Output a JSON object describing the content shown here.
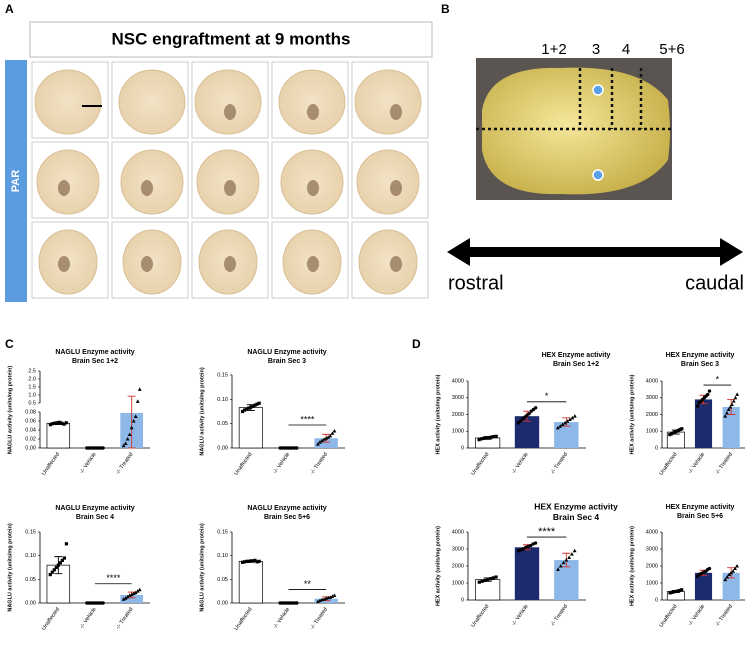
{
  "panels": {
    "A": {
      "label": "A",
      "title": "NSC engraftment at 9 months",
      "side_label": "PAR"
    },
    "B": {
      "label": "B",
      "sections": [
        "1+2",
        "3",
        "4",
        "5+6"
      ],
      "left": "rostral",
      "right": "caudal"
    },
    "C": {
      "label": "C"
    },
    "D": {
      "label": "D"
    }
  },
  "chart_data": [
    {
      "type": "bar",
      "title": [
        "NAGLU Enzyme activity",
        "Brain Sec 1+2"
      ],
      "ylabel": "NAGLU activity (units/mg protein)",
      "categories": [
        "Unaffected",
        "-/- Vehicle",
        "-/- Treated"
      ],
      "colors": [
        "#ffffff",
        "#1c2a6e",
        "#8db8e8"
      ],
      "values": [
        0.055,
        0,
        0.078
      ],
      "errors": [
        0.003,
        0,
        0.85
      ],
      "points": [
        [
          0.052,
          0.054,
          0.055,
          0.056,
          0.057,
          0.055,
          0.053,
          0.056
        ],
        [
          0,
          0,
          0,
          0,
          0,
          0,
          0,
          0,
          0
        ],
        [
          0.005,
          0.01,
          0.02,
          0.03,
          0.045,
          0.06,
          0.07,
          0.6,
          1.35
        ]
      ],
      "ylim": [
        0,
        0.08
      ],
      "yticks": [
        {
          "value": 0,
          "label": "0.00"
        },
        {
          "value": 0.02,
          "label": "0.02"
        },
        {
          "value": 0.04,
          "label": "0.04"
        },
        {
          "value": 0.06,
          "label": "0.06"
        },
        {
          "value": 0.08,
          "label": "0.08"
        }
      ],
      "upper_ylim": [
        0.5,
        2.5
      ],
      "upper_yticks": [
        0.5,
        {
          "value": 1,
          "label": "1.0"
        },
        1.5,
        {
          "value": 2,
          "label": "2.0"
        },
        2.5
      ]
    },
    {
      "type": "bar",
      "title": [
        "NAGLU Enzyme activity",
        "Brain Sec 3"
      ],
      "ylabel": "NAGLU activity (units/mg protein)",
      "categories": [
        "Unaffected",
        "-/- Vehicle",
        "-/- Treated"
      ],
      "colors": [
        "#ffffff",
        "#1c2a6e",
        "#8db8e8"
      ],
      "values": [
        0.083,
        0,
        0.02
      ],
      "errors": [
        0.006,
        0,
        0.008
      ],
      "points": [
        [
          0.075,
          0.078,
          0.08,
          0.082,
          0.084,
          0.086,
          0.088,
          0.09,
          0.092
        ],
        [
          0,
          0,
          0,
          0,
          0,
          0,
          0,
          0,
          0
        ],
        [
          0.008,
          0.012,
          0.015,
          0.018,
          0.02,
          0.022,
          0.025,
          0.03,
          0.035
        ]
      ],
      "ylim": [
        0,
        0.15
      ],
      "yticks": [
        {
          "value": 0,
          "label": "0.00"
        },
        {
          "value": 0.05,
          "label": "0.05"
        },
        {
          "value": 0.1,
          "label": "0.10"
        },
        {
          "value": 0.15,
          "label": "0.15"
        }
      ],
      "significance": "****"
    },
    {
      "type": "bar",
      "title": [
        "NAGLU Enzyme activity",
        "Brain Sec 4"
      ],
      "ylabel": "NAGLU activity (units/mg protein)",
      "categories": [
        "Unaffected",
        "-/- Vehicle",
        "-/- Treated"
      ],
      "colors": [
        "#ffffff",
        "#1c2a6e",
        "#8db8e8"
      ],
      "values": [
        0.08,
        0,
        0.017
      ],
      "errors": [
        0.018,
        0,
        0.006
      ],
      "points": [
        [
          0.06,
          0.065,
          0.07,
          0.075,
          0.08,
          0.085,
          0.09,
          0.095,
          0.125
        ],
        [
          0,
          0,
          0,
          0,
          0,
          0,
          0,
          0,
          0
        ],
        [
          0.008,
          0.01,
          0.013,
          0.016,
          0.018,
          0.02,
          0.022,
          0.025,
          0.028
        ]
      ],
      "ylim": [
        0,
        0.15
      ],
      "yticks": [
        {
          "value": 0,
          "label": "0.00"
        },
        {
          "value": 0.05,
          "label": "0.05"
        },
        {
          "value": 0.1,
          "label": "0.10"
        },
        {
          "value": 0.15,
          "label": "0.15"
        }
      ],
      "significance": "****"
    },
    {
      "type": "bar",
      "title": [
        "NAGLU Enzyme activity",
        "Brain Sec 5+6"
      ],
      "ylabel": "NAGLU activity (units/mg protein)",
      "categories": [
        "Unaffected",
        "-/- Vehicle",
        "-/- Treated"
      ],
      "colors": [
        "#ffffff",
        "#1c2a6e",
        "#8db8e8"
      ],
      "values": [
        0.088,
        0,
        0.009
      ],
      "errors": [
        0.002,
        0,
        0.004
      ],
      "points": [
        [
          0.086,
          0.087,
          0.088,
          0.088,
          0.089,
          0.089,
          0.09,
          0.087,
          0.088
        ],
        [
          0,
          0,
          0,
          0,
          0,
          0,
          0,
          0,
          0
        ],
        [
          0.003,
          0.005,
          0.007,
          0.008,
          0.01,
          0.011,
          0.012,
          0.014,
          0.016
        ]
      ],
      "ylim": [
        0,
        0.15
      ],
      "yticks": [
        {
          "value": 0,
          "label": "0.00"
        },
        {
          "value": 0.05,
          "label": "0.05"
        },
        {
          "value": 0.1,
          "label": "0.10"
        },
        {
          "value": 0.15,
          "label": "0.15"
        }
      ],
      "significance": "**"
    },
    {
      "type": "bar",
      "title": [
        "HEX Enzyme activity",
        "Brain Sec 1+2"
      ],
      "ylabel": "HEX activity (units/mg protein)",
      "categories": [
        "Unaffected",
        "-/- Vehicle",
        "-/- Treated"
      ],
      "colors": [
        "#ffffff",
        "#1c2a6e",
        "#8db8e8"
      ],
      "values": [
        600,
        1900,
        1550
      ],
      "errors": [
        80,
        300,
        250
      ],
      "points": [
        [
          500,
          550,
          580,
          600,
          620,
          650,
          680,
          700
        ],
        [
          1500,
          1600,
          1750,
          1850,
          1950,
          2050,
          2200,
          2300,
          2400
        ],
        [
          1200,
          1300,
          1400,
          1500,
          1600,
          1700,
          1800,
          1900
        ]
      ],
      "ylim": [
        0,
        4000
      ],
      "yticks": [
        0,
        1000,
        2000,
        3000,
        4000
      ],
      "significance": "*"
    },
    {
      "type": "bar",
      "title": [
        "HEX Enzyme activity",
        "Brain Sec 3"
      ],
      "ylabel": "HEX activity (units/mg protein)",
      "categories": [
        "Unaffected",
        "-/- Vehicle",
        "-/- Treated"
      ],
      "colors": [
        "#ffffff",
        "#1c2a6e",
        "#8db8e8"
      ],
      "values": [
        950,
        2900,
        2450
      ],
      "errors": [
        120,
        250,
        450
      ],
      "points": [
        [
          800,
          850,
          900,
          950,
          1000,
          1050,
          1100,
          1150
        ],
        [
          2500,
          2700,
          2800,
          2900,
          3000,
          3100,
          3200,
          3400
        ],
        [
          1900,
          2100,
          2300,
          2450,
          2600,
          2800,
          3000,
          3200
        ]
      ],
      "ylim": [
        0,
        4000
      ],
      "yticks": [
        0,
        1000,
        2000,
        3000,
        4000
      ],
      "significance": "*"
    },
    {
      "type": "bar",
      "title": [
        "HEX Enzyme activity",
        "Brain Sec 4"
      ],
      "ylabel": "HEX activity (units/mg protein)",
      "categories": [
        "Unaffected",
        "-/- Vehicle",
        "-/- Treated"
      ],
      "colors": [
        "#ffffff",
        "#1c2a6e",
        "#8db8e8"
      ],
      "values": [
        1200,
        3100,
        2350
      ],
      "errors": [
        100,
        150,
        400
      ],
      "points": [
        [
          1050,
          1100,
          1150,
          1200,
          1250,
          1300,
          1350
        ],
        [
          2900,
          2950,
          3000,
          3100,
          3150,
          3200,
          3300,
          3350
        ],
        [
          1800,
          2000,
          2200,
          2350,
          2500,
          2700,
          2900
        ]
      ],
      "ylim": [
        0,
        4000
      ],
      "yticks": [
        0,
        1000,
        2000,
        3000,
        4000
      ],
      "significance": "****"
    },
    {
      "type": "bar",
      "title": [
        "HEX Enzyme activity",
        "Brain Sec 5+6"
      ],
      "ylabel": "HEX activity (units/mg protein)",
      "categories": [
        "Unaffected",
        "-/- Vehicle",
        "-/- Treated"
      ],
      "colors": [
        "#ffffff",
        "#1c2a6e",
        "#8db8e8"
      ],
      "values": [
        500,
        1600,
        1600
      ],
      "errors": [
        60,
        150,
        300
      ],
      "points": [
        [
          420,
          450,
          480,
          500,
          530,
          560,
          600
        ],
        [
          1400,
          1500,
          1550,
          1600,
          1650,
          1700,
          1800,
          1850
        ],
        [
          1200,
          1350,
          1500,
          1600,
          1700,
          1850,
          2000
        ]
      ],
      "ylim": [
        0,
        4000
      ],
      "yticks": [
        0,
        1000,
        2000,
        3000,
        4000
      ]
    }
  ]
}
